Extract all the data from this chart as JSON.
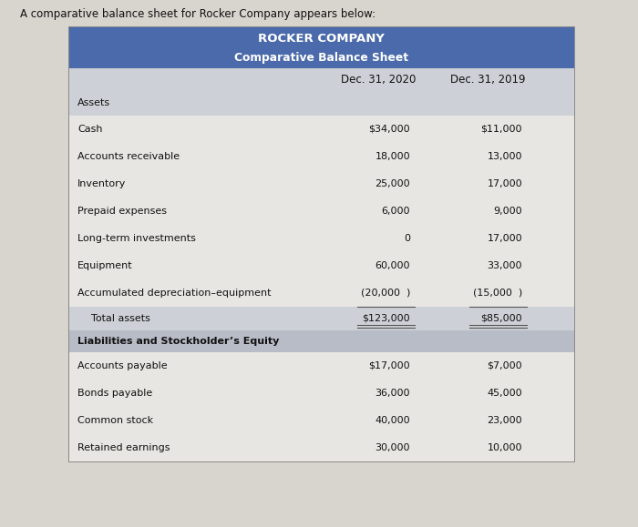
{
  "intro_text": "A comparative balance sheet for Rocker Company appears below:",
  "title_line1": "ROCKER COMPANY",
  "title_line2": "Comparative Balance Sheet",
  "col1_header": "Dec. 31, 2020",
  "col2_header": "Dec. 31, 2019",
  "header_bg": "#4a6aab",
  "header_text_color": "#ffffff",
  "page_bg": "#d8d4ce",
  "col_header_bg": "#cdd0d6",
  "assets_row_bg": "#cdd0d6",
  "liab_row_bg": "#b8bcc6",
  "total_row_bg": "#cdd0d6",
  "data_row_bg1": "#e8e6e2",
  "data_row_bg2": "#dddbd7",
  "rows": [
    {
      "label": "Assets",
      "val2020": "",
      "val2019": "",
      "type": "section"
    },
    {
      "label": "Cash",
      "val2020": "$34,000",
      "val2019": "$11,000",
      "type": "data"
    },
    {
      "label": "Accounts receivable",
      "val2020": "18,000",
      "val2019": "13,000",
      "type": "data"
    },
    {
      "label": "Inventory",
      "val2020": "25,000",
      "val2019": "17,000",
      "type": "data"
    },
    {
      "label": "Prepaid expenses",
      "val2020": "6,000",
      "val2019": "9,000",
      "type": "data"
    },
    {
      "label": "Long-term investments",
      "val2020": "0",
      "val2019": "17,000",
      "type": "data"
    },
    {
      "label": "Equipment",
      "val2020": "60,000",
      "val2019": "33,000",
      "type": "data"
    },
    {
      "label": "Accumulated depreciation–equipment",
      "val2020": "(20,000  )",
      "val2019": "(15,000  )",
      "type": "data"
    },
    {
      "label": "Total assets",
      "val2020": "$123,000",
      "val2019": "$85,000",
      "type": "total"
    },
    {
      "label": "Liabilities and Stockholder’s Equity",
      "val2020": "",
      "val2019": "",
      "type": "section2"
    },
    {
      "label": "Accounts payable",
      "val2020": "$17,000",
      "val2019": "$7,000",
      "type": "data"
    },
    {
      "label": "Bonds payable",
      "val2020": "36,000",
      "val2019": "45,000",
      "type": "data"
    },
    {
      "label": "Common stock",
      "val2020": "40,000",
      "val2019": "23,000",
      "type": "data"
    },
    {
      "label": "Retained earnings",
      "val2020": "30,000",
      "val2019": "10,000",
      "type": "data"
    }
  ],
  "font_size_intro": 8.5,
  "font_size_title1": 9.5,
  "font_size_title2": 8.8,
  "font_size_header": 8.5,
  "font_size_data": 8.0,
  "font_size_section": 8.0
}
